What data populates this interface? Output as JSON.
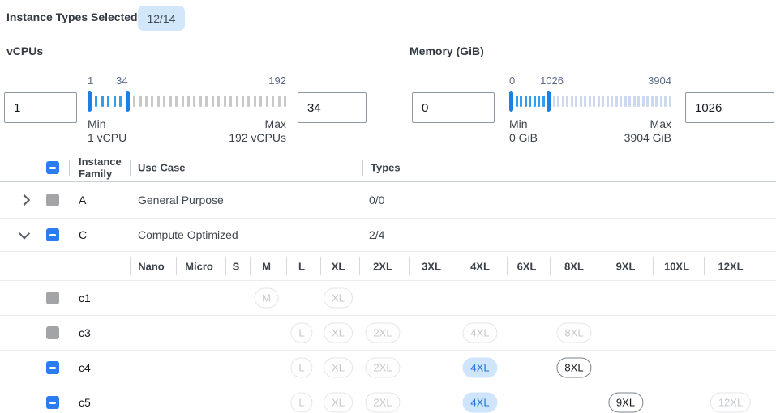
{
  "header": {
    "label": "Instance Types Selected:",
    "badge": "12/14"
  },
  "filters": {
    "vcpus": {
      "title": "vCPUs",
      "from_value": "1",
      "to_value": "34",
      "scale": {
        "min": 1,
        "current": 34,
        "max": 192
      },
      "min_label": "Min",
      "min_caption": "1 vCPU",
      "max_label": "Max",
      "max_caption": "192 vCPUs",
      "ticks": {
        "active": 5,
        "inactive": 26
      }
    },
    "memory": {
      "title": "Memory (GiB)",
      "from_value": "0",
      "to_value": "1026",
      "scale": {
        "min": 0,
        "current": 1026,
        "max": 3904
      },
      "min_label": "Min",
      "min_caption": "0 GiB",
      "max_label": "Max",
      "max_caption": "3904 GiB",
      "ticks": {
        "active": 7,
        "inactive": 27
      }
    }
  },
  "table": {
    "header": {
      "family": "Instance Family",
      "use_case": "Use Case",
      "types": "Types"
    },
    "header_checkbox": "blue-indeterminate",
    "size_columns": [
      "Nano",
      "Micro",
      "S",
      "M",
      "L",
      "XL",
      "2XL",
      "3XL",
      "4XL",
      "6XL",
      "8XL",
      "9XL",
      "10XL",
      "12XL"
    ],
    "families": [
      {
        "name": "A",
        "use_case": "General Purpose",
        "types": "0/0",
        "checkbox": "gray",
        "expanded": false
      },
      {
        "name": "C",
        "use_case": "Compute Optimized",
        "types": "2/4",
        "checkbox": "blue-indeterminate",
        "expanded": true
      }
    ],
    "instances": [
      {
        "name": "c1",
        "checkbox": "gray",
        "sizes": [
          {
            "label": "M",
            "state": "disabled"
          },
          {
            "label": "XL",
            "state": "disabled"
          }
        ]
      },
      {
        "name": "c3",
        "checkbox": "gray",
        "sizes": [
          {
            "label": "L",
            "state": "disabled"
          },
          {
            "label": "XL",
            "state": "disabled"
          },
          {
            "label": "2XL",
            "state": "disabled"
          },
          {
            "label": "4XL",
            "state": "disabled"
          },
          {
            "label": "8XL",
            "state": "disabled"
          }
        ]
      },
      {
        "name": "c4",
        "checkbox": "blue-indeterminate",
        "sizes": [
          {
            "label": "L",
            "state": "disabled"
          },
          {
            "label": "XL",
            "state": "disabled"
          },
          {
            "label": "2XL",
            "state": "disabled"
          },
          {
            "label": "4XL",
            "state": "selected"
          },
          {
            "label": "8XL",
            "state": "available"
          }
        ]
      },
      {
        "name": "c5",
        "checkbox": "blue-indeterminate",
        "sizes": [
          {
            "label": "L",
            "state": "disabled"
          },
          {
            "label": "XL",
            "state": "disabled"
          },
          {
            "label": "2XL",
            "state": "disabled"
          },
          {
            "label": "4XL",
            "state": "selected"
          },
          {
            "label": "9XL",
            "state": "available"
          },
          {
            "label": "12XL",
            "state": "disabled"
          }
        ]
      }
    ]
  },
  "colors": {
    "accent_blue": "#2b7bf3",
    "badge_bg": "#d3e7fb",
    "selected_chip_bg": "#cfe5fc",
    "selected_chip_text": "#2074d5",
    "slider_handle": "#1b7fe4",
    "slider_active_tick": "#319df0",
    "vcpu_inactive_tick": "#c9c9c9",
    "memory_inactive_tick": "#cdd9ef"
  }
}
